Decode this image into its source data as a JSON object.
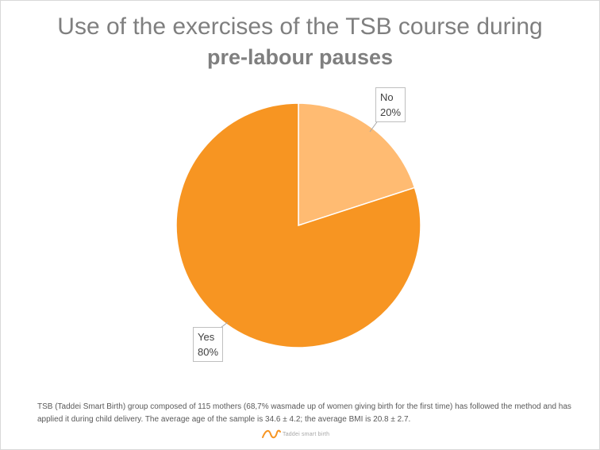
{
  "chart_data": {
    "type": "pie",
    "title": "Use of the exercises of the TSB course during",
    "subtitle": "pre-labour pauses",
    "slices": [
      {
        "label": "No",
        "value": 20,
        "value_label": "20%",
        "color": "#ffbb72"
      },
      {
        "label": "Yes",
        "value": 80,
        "value_label": "80%",
        "color": "#f79522"
      }
    ],
    "start_angle": "12 o'clock, clockwise",
    "legend": "none"
  },
  "footnote": "TSB (Taddei Smart Birth) group composed of 115 mothers (68,7% wasmade up of women giving birth for the first time) has followed the method and has applied it during child delivery. The average age of the sample is 34.6 ± 4.2; the average BMI is 20.8 ± 2.7.",
  "logo": {
    "text": "Taddei smart birth",
    "color": "#f79522"
  }
}
